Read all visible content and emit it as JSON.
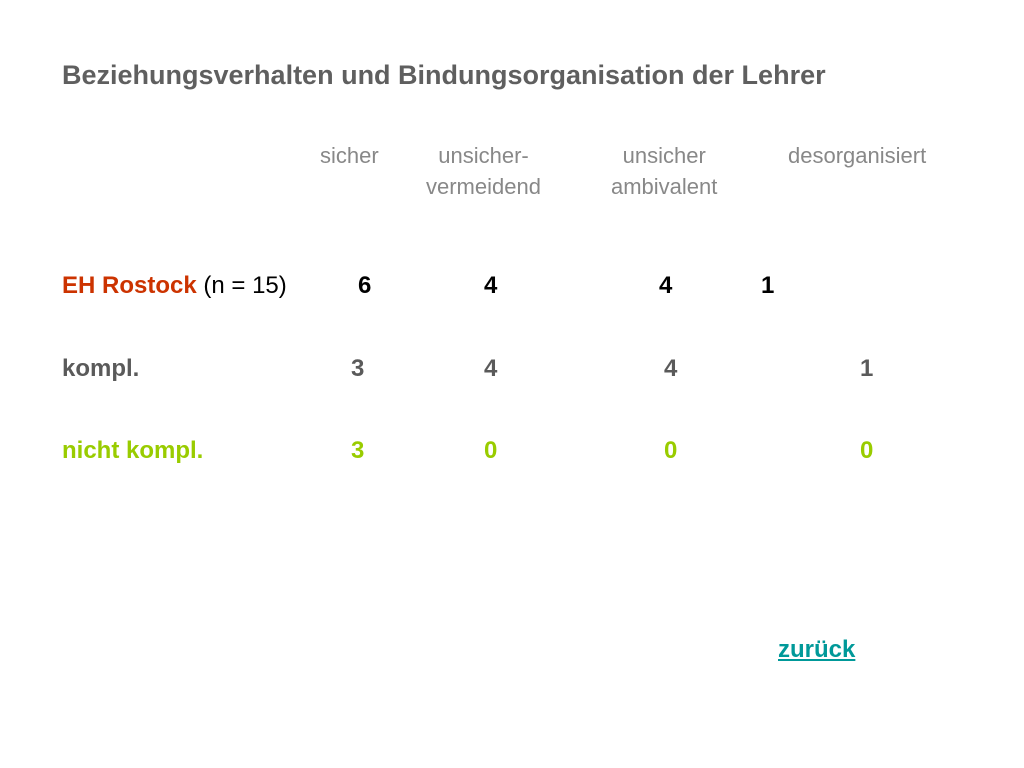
{
  "title": "Beziehungsverhalten und Bindungsorganisation der Lehrer",
  "columns": [
    {
      "line1": "sicher",
      "line2": ""
    },
    {
      "line1": "unsicher-",
      "line2": "vermeidend"
    },
    {
      "line1": "unsicher",
      "line2": "ambivalent"
    },
    {
      "line1": "desorganisiert",
      "line2": ""
    }
  ],
  "rows": [
    {
      "label": "EH Rostock",
      "suffix": "(n = 15)",
      "values": [
        "6",
        "4",
        "4",
        "1"
      ],
      "color": "#cc3300"
    },
    {
      "label": "kompl.",
      "values": [
        "3",
        "4",
        "4",
        "1"
      ],
      "color": "#5a5a5a"
    },
    {
      "label": "nicht kompl.",
      "values": [
        "3",
        "0",
        "0",
        "0"
      ],
      "color": "#99cc00"
    }
  ],
  "back_link": "zurück"
}
